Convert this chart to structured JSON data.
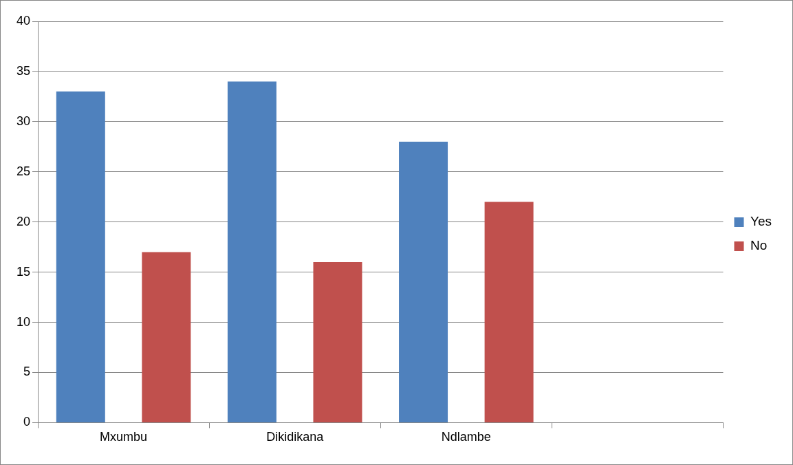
{
  "chart_data": {
    "type": "bar",
    "categories": [
      "Mxumbu",
      "Dikidikana",
      "Ndlambe",
      null
    ],
    "series": [
      {
        "name": "Yes",
        "color": "#4f81bd",
        "values": [
          33,
          34,
          28,
          null
        ]
      },
      {
        "name": "No",
        "color": "#c0504d",
        "values": [
          17,
          16,
          22,
          null
        ]
      }
    ],
    "ylim": [
      0,
      40
    ],
    "yticks": [
      0,
      5,
      10,
      15,
      20,
      25,
      30,
      35,
      40
    ],
    "grid": "y",
    "legend": "right"
  }
}
